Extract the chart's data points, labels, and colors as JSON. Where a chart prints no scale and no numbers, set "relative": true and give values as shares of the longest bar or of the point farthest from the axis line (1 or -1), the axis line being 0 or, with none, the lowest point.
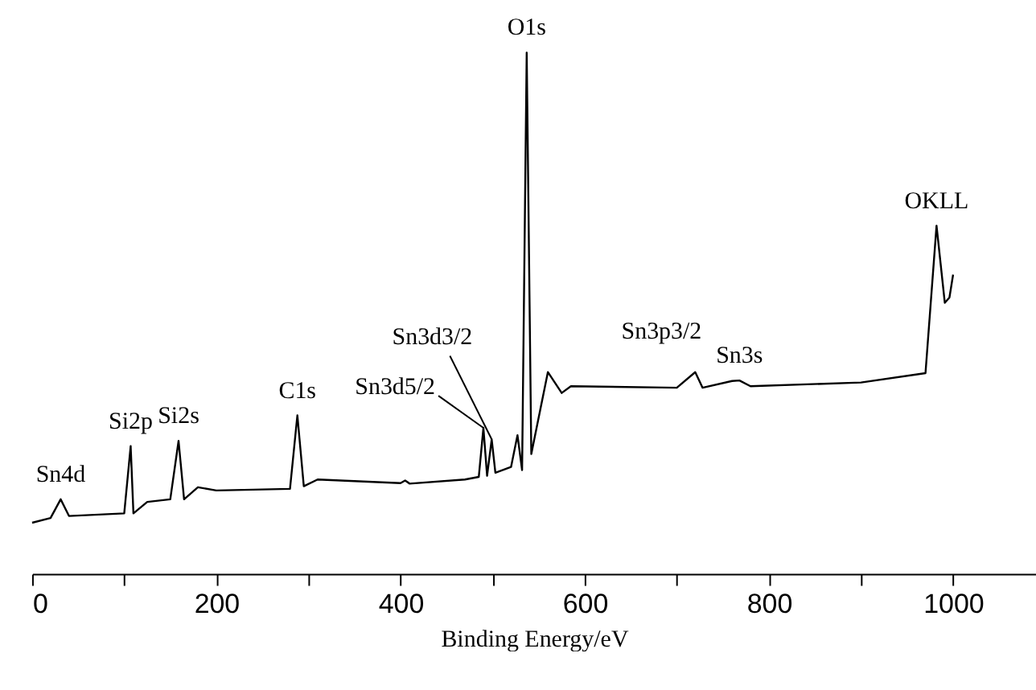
{
  "chart_data": {
    "type": "line",
    "relative": true,
    "xlabel": "Binding Energy/eV",
    "xlim": [
      0,
      1090
    ],
    "xticks": [
      0,
      {
        "value": 100,
        "label": null
      },
      200,
      {
        "value": 300,
        "label": null
      },
      400,
      {
        "value": 500,
        "label": null
      },
      600,
      {
        "value": 700,
        "label": null
      },
      800,
      {
        "value": 900,
        "label": null
      },
      1000
    ],
    "grid": false,
    "marker": "none",
    "line_style": "solid",
    "series": [
      {
        "color": "#000000",
        "x": [
          0,
          20,
          31,
          40,
          100,
          107,
          110,
          125,
          150,
          159,
          165,
          180,
          200,
          280,
          288,
          295,
          310,
          400,
          405,
          410,
          470,
          485,
          490,
          494,
          499,
          503,
          520,
          527,
          532,
          537,
          542,
          560,
          575,
          585,
          700,
          720,
          728,
          760,
          768,
          780,
          900,
          970,
          982,
          991,
          996,
          1000
        ],
        "values": [
          0.098,
          0.107,
          0.143,
          0.111,
          0.116,
          0.245,
          0.116,
          0.138,
          0.143,
          0.255,
          0.143,
          0.166,
          0.16,
          0.163,
          0.304,
          0.168,
          0.181,
          0.174,
          0.179,
          0.173,
          0.181,
          0.186,
          0.28,
          0.188,
          0.258,
          0.194,
          0.205,
          0.266,
          0.199,
          1,
          0.23,
          0.387,
          0.347,
          0.36,
          0.357,
          0.387,
          0.357,
          0.37,
          0.371,
          0.36,
          0.367,
          0.385,
          0.668,
          0.52,
          0.53,
          0.574
        ]
      }
    ],
    "annotations": [
      {
        "text": "Sn4d",
        "x": 31,
        "y": 0.143
      },
      {
        "text": "Si2p",
        "x": 107,
        "y": 0.245
      },
      {
        "text": "Si2s",
        "x": 159,
        "y": 0.255
      },
      {
        "text": "C1s",
        "x": 288,
        "y": 0.304
      },
      {
        "text": "Sn3d5/2",
        "x": 490,
        "y": 0.28
      },
      {
        "text": "Sn3d3/2",
        "x": 499,
        "y": 0.258
      },
      {
        "text": "O1s",
        "x": 537,
        "y": 1
      },
      {
        "text": "Sn3p3/2",
        "x": 720,
        "y": 0.387
      },
      {
        "text": "Sn3s",
        "x": 768,
        "y": 0.371
      },
      {
        "text": "OKLL",
        "x": 982,
        "y": 0.668
      }
    ]
  }
}
